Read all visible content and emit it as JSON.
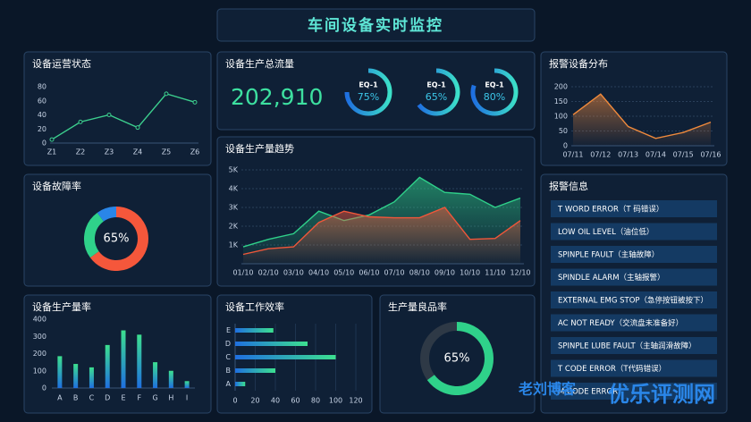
{
  "title": "车间设备实时监控",
  "alarms": {
    "title": "报警信息",
    "items": [
      "T WORD ERROR（T 码错误）",
      "LOW OIL LEVEL（油位低）",
      "SPINPLE FAULT（主轴故障）",
      "SPINDLE ALARM（主轴报警）",
      "EXTERNAL EMG STOP（急停按钮被按下）",
      "AC NOT READY（交流盘未准备好）",
      "SPINPLE LUBE FAULT（主轴润滑故障）",
      "T CODE ERROR（T代码错误）",
      "M CODE ERROR"
    ]
  },
  "watermark": [
    "老刘博客",
    "优乐评测网"
  ],
  "chart_data": [
    {
      "type": "line",
      "title": "设备运营状态",
      "categories": [
        "Z1",
        "Z2",
        "Z3",
        "Z4",
        "Z5",
        "Z6"
      ],
      "values": [
        5,
        30,
        40,
        22,
        70,
        58
      ],
      "color": "#3ccf8e",
      "ylim": [
        0,
        80
      ],
      "yticks": [
        0,
        20,
        40,
        60,
        80
      ],
      "markers": true
    },
    {
      "type": "donut",
      "title": "设备故障率",
      "values": [
        65,
        25,
        10
      ],
      "colors": [
        "#f5573b",
        "#2fd18a",
        "#2a86e8"
      ],
      "center_label": "65%"
    },
    {
      "type": "bar",
      "title": "设备生产量率",
      "categories": [
        "A",
        "B",
        "C",
        "D",
        "E",
        "F",
        "G",
        "H",
        "I"
      ],
      "values": [
        185,
        140,
        120,
        250,
        335,
        310,
        150,
        100,
        40
      ],
      "colors": [
        "#3ce08f",
        "#1f6fe0"
      ],
      "ylim": [
        0,
        400
      ],
      "yticks": [
        0,
        100,
        200,
        300,
        400
      ]
    },
    {
      "type": "gauge",
      "title": "设备生产总流量",
      "total": "202,910",
      "categories": [
        "EQ-1",
        "EQ-1",
        "EQ-1"
      ],
      "values": [
        75,
        65,
        80
      ],
      "value_labels": [
        "75%",
        "65%",
        "80%"
      ],
      "colors": [
        "#1f6fe0",
        "#3ce0c8"
      ]
    },
    {
      "type": "line",
      "title": "设备生产量趋势",
      "categories": [
        "01/10",
        "02/10",
        "03/10",
        "04/10",
        "05/10",
        "06/10",
        "07/10",
        "08/10",
        "09/10",
        "10/10",
        "11/10",
        "12/10"
      ],
      "series": [
        {
          "color": "#2fd18a",
          "values": [
            900,
            1300,
            1600,
            2800,
            2300,
            2600,
            3300,
            4600,
            3800,
            3700,
            3000,
            3500
          ]
        },
        {
          "color": "#f0573a",
          "values": [
            500,
            800,
            900,
            2200,
            2800,
            2500,
            2450,
            2450,
            3000,
            1300,
            1350,
            2300
          ]
        }
      ],
      "ylim": [
        0,
        5000
      ],
      "yticks": [
        {
          "value": 1000,
          "label": "1K"
        },
        {
          "value": 2000,
          "label": "2K"
        },
        {
          "value": 3000,
          "label": "3K"
        },
        {
          "value": 4000,
          "label": "4K"
        },
        {
          "value": 5000,
          "label": "5K"
        }
      ],
      "grid": true,
      "area": true
    },
    {
      "type": "hbar",
      "title": "设备工作效率",
      "categories": [
        "A",
        "B",
        "C",
        "D",
        "E"
      ],
      "values": [
        10,
        40,
        100,
        72,
        38
      ],
      "colors": [
        "#1f6fe0",
        "#3ce08f"
      ],
      "xlim": [
        0,
        120
      ],
      "xticks": [
        0,
        20,
        40,
        60,
        80,
        100,
        120
      ]
    },
    {
      "type": "ring",
      "title": "生产量良品率",
      "value": 65,
      "value_label": "65%",
      "color": "#2fd18a"
    },
    {
      "type": "line",
      "title": "报警设备分布",
      "categories": [
        "07/11",
        "07/12",
        "07/13",
        "07/14",
        "07/15",
        "07/16"
      ],
      "values": [
        105,
        175,
        65,
        25,
        45,
        80
      ],
      "color": "#f08a3c",
      "ylim": [
        0,
        200
      ],
      "yticks": [
        0,
        50,
        100,
        150,
        200
      ],
      "grid": true,
      "area": true
    }
  ]
}
